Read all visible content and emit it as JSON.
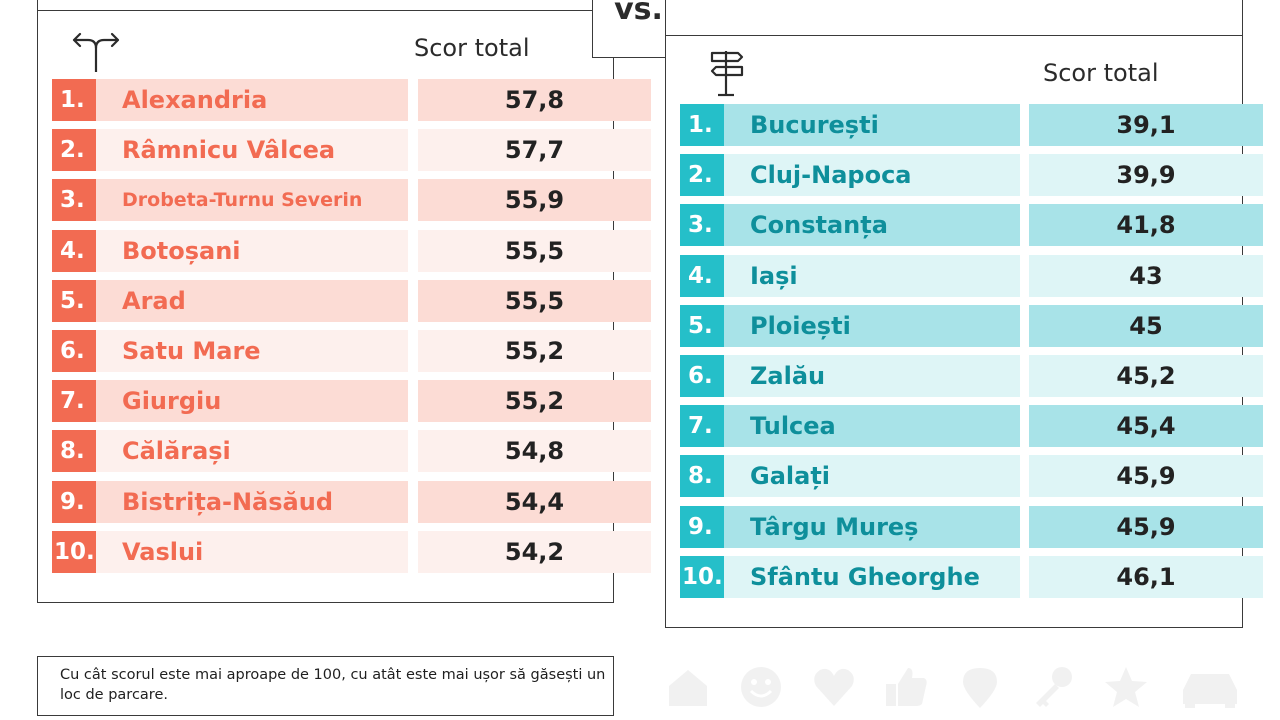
{
  "vs_label": "vs.",
  "left": {
    "score_header": "Scor total",
    "icon": "direction-arrows-icon",
    "rows": [
      {
        "rank": "1.",
        "city": "Alexandria",
        "score": "57,8"
      },
      {
        "rank": "2.",
        "city": "Râmnicu Vâlcea",
        "score": "57,7"
      },
      {
        "rank": "3.",
        "city": "Drobeta-Turnu Severin",
        "score": "55,9"
      },
      {
        "rank": "4.",
        "city": "Botoșani",
        "score": "55,5"
      },
      {
        "rank": "5.",
        "city": "Arad",
        "score": "55,5"
      },
      {
        "rank": "6.",
        "city": "Satu Mare",
        "score": "55,2"
      },
      {
        "rank": "7.",
        "city": "Giurgiu",
        "score": "55,2"
      },
      {
        "rank": "8.",
        "city": "Călărași",
        "score": "54,8"
      },
      {
        "rank": "9.",
        "city": "Bistrița-Năsăud",
        "score": "54,4"
      },
      {
        "rank": "10.",
        "city": "Vaslui",
        "score": "54,2"
      }
    ]
  },
  "right": {
    "score_header": "Scor total",
    "icon": "signpost-icon",
    "rows": [
      {
        "rank": "1.",
        "city": "București",
        "score": "39,1"
      },
      {
        "rank": "2.",
        "city": "Cluj-Napoca",
        "score": "39,9"
      },
      {
        "rank": "3.",
        "city": "Constanța",
        "score": "41,8"
      },
      {
        "rank": "4.",
        "city": "Iași",
        "score": "43"
      },
      {
        "rank": "5.",
        "city": "Ploiești",
        "score": "45"
      },
      {
        "rank": "6.",
        "city": "Zalău",
        "score": "45,2"
      },
      {
        "rank": "7.",
        "city": "Tulcea",
        "score": "45,4"
      },
      {
        "rank": "8.",
        "city": "Galați",
        "score": "45,9"
      },
      {
        "rank": "9.",
        "city": "Târgu Mureș",
        "score": "45,9"
      },
      {
        "rank": "10.",
        "city": "Sfântu Gheorghe",
        "score": "46,1"
      }
    ]
  },
  "note": "Cu cât scorul este mai aproape de 100, cu atât este mai ușor să găsești un loc de parcare.",
  "colors": {
    "worst_accent": "#f26b52",
    "best_accent": "#25bfc9",
    "best_text": "#0e8f9b"
  },
  "decor_icons": [
    "home-icon",
    "smiley-icon",
    "heart-icon",
    "thumbs-up-icon",
    "location-pin-icon",
    "key-icon",
    "star-icon",
    "car-icon"
  ]
}
